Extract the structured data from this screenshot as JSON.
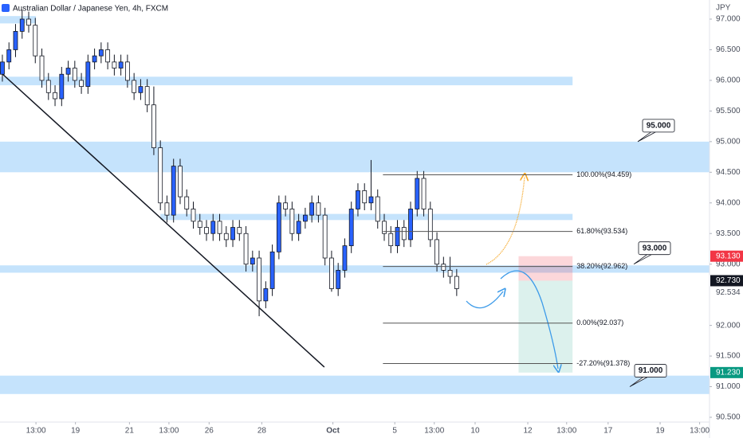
{
  "chart_data": {
    "type": "candlestick",
    "title": "Australian Dollar / Japanese Yen, 4h, FXCM",
    "currency": "JPY",
    "up_color": "#2962ff",
    "down_color": "#ffffff",
    "wick_color": "#131722",
    "open": [
      96.1,
      96.3,
      96.5,
      96.8,
      97.0,
      96.9,
      96.4,
      96.0,
      95.8,
      95.7,
      96.1,
      96.2,
      96.0,
      95.9,
      96.3,
      96.4,
      96.5,
      96.3,
      96.2,
      96.3,
      96.0,
      95.8,
      95.9,
      95.6,
      94.9,
      94.0,
      93.8,
      94.6,
      94.1,
      93.9,
      93.7,
      93.6,
      93.5,
      93.7,
      93.5,
      93.4,
      93.6,
      93.5,
      93.0,
      93.1,
      92.4,
      92.6,
      93.2,
      94.0,
      93.9,
      93.5,
      93.7,
      93.8,
      94.0,
      93.8,
      93.1,
      92.6,
      92.9,
      93.3,
      93.9,
      94.2,
      94.0,
      94.1,
      93.7,
      93.5,
      93.3,
      93.6,
      93.4,
      93.9,
      94.4,
      93.9,
      93.4,
      93.0,
      92.9,
      92.8
    ],
    "high": [
      96.42,
      96.62,
      96.92,
      97.15,
      97.12,
      97.02,
      96.52,
      96.12,
      95.92,
      96.22,
      96.32,
      96.32,
      96.12,
      96.42,
      96.52,
      96.62,
      96.62,
      96.42,
      96.42,
      96.42,
      96.12,
      96.02,
      96.02,
      95.9,
      95.02,
      94.12,
      94.72,
      94.72,
      94.22,
      94.02,
      93.82,
      93.72,
      93.82,
      93.82,
      93.62,
      93.72,
      93.72,
      93.62,
      93.22,
      93.22,
      92.72,
      93.32,
      94.12,
      94.12,
      94.02,
      93.82,
      93.92,
      94.12,
      94.12,
      93.92,
      93.22,
      93.02,
      93.42,
      94.02,
      94.32,
      94.32,
      94.7,
      94.22,
      93.82,
      93.62,
      93.72,
      93.72,
      94.02,
      94.52,
      94.52,
      94.02,
      93.52,
      93.12,
      93.12,
      92.92
    ],
    "low": [
      95.98,
      96.18,
      96.38,
      96.68,
      96.78,
      96.28,
      95.88,
      95.68,
      95.58,
      95.58,
      95.98,
      95.88,
      95.78,
      95.78,
      96.18,
      96.28,
      96.18,
      96.08,
      96.08,
      95.88,
      95.68,
      95.68,
      95.48,
      94.78,
      93.88,
      93.68,
      93.68,
      93.98,
      93.78,
      93.58,
      93.48,
      93.38,
      93.38,
      93.38,
      93.28,
      93.28,
      93.38,
      92.88,
      92.88,
      92.15,
      92.28,
      92.48,
      93.08,
      93.78,
      93.38,
      93.38,
      93.58,
      93.68,
      93.68,
      92.98,
      92.55,
      92.48,
      92.78,
      93.18,
      93.78,
      93.88,
      93.88,
      93.58,
      93.38,
      93.18,
      93.18,
      93.28,
      93.28,
      93.78,
      93.78,
      93.28,
      92.88,
      92.78,
      92.68,
      92.48
    ],
    "close": [
      96.3,
      96.5,
      96.8,
      97.0,
      96.9,
      96.4,
      96.0,
      95.8,
      95.7,
      96.1,
      96.2,
      96.0,
      95.9,
      96.3,
      96.4,
      96.5,
      96.3,
      96.2,
      96.3,
      96.0,
      95.8,
      95.9,
      95.6,
      94.9,
      94.0,
      93.8,
      94.6,
      94.1,
      93.9,
      93.7,
      93.6,
      93.5,
      93.7,
      93.5,
      93.4,
      93.6,
      93.5,
      93.0,
      93.1,
      92.4,
      92.6,
      93.2,
      94.0,
      93.9,
      93.5,
      93.7,
      93.8,
      94.0,
      93.8,
      93.1,
      92.6,
      92.9,
      93.3,
      93.9,
      94.2,
      94.0,
      94.1,
      93.7,
      93.5,
      93.3,
      93.6,
      93.4,
      93.9,
      94.4,
      93.9,
      93.4,
      93.0,
      92.9,
      92.8,
      92.6
    ],
    "xlim": [
      -0.36,
      107.4
    ],
    "ylim": [
      90.422,
      97.312
    ],
    "xticks": [
      {
        "value": 5.1,
        "label": "13:00"
      },
      {
        "value": 11.1,
        "label": "19"
      },
      {
        "value": 19.3,
        "label": "21"
      },
      {
        "value": 25.3,
        "label": "13:00"
      },
      {
        "value": 31.4,
        "label": "26"
      },
      {
        "value": 39.4,
        "label": "28"
      },
      {
        "value": 50.2,
        "label": "Oct"
      },
      {
        "value": 59.6,
        "label": "5"
      },
      {
        "value": 65.6,
        "label": "13:00"
      },
      {
        "value": 71.8,
        "label": "10"
      },
      {
        "value": 79.8,
        "label": "12"
      },
      {
        "value": 85.7,
        "label": "13:00"
      },
      {
        "value": 92.0,
        "label": "17"
      },
      {
        "value": 99.9,
        "label": "19"
      },
      {
        "value": 105.9,
        "label": "13:00"
      }
    ],
    "yticks": [
      {
        "value": 97,
        "label": "97.000"
      },
      {
        "value": 96.5,
        "label": "96.500"
      },
      {
        "value": 96,
        "label": "96.000"
      },
      {
        "value": 95.5,
        "label": "95.500"
      },
      {
        "value": 95,
        "label": "95.000"
      },
      {
        "value": 94.5,
        "label": "94.500"
      },
      {
        "value": 94,
        "label": "94.000"
      },
      {
        "value": 93.5,
        "label": "93.500"
      },
      {
        "value": 93,
        "label": "93.000"
      },
      {
        "value": 92,
        "label": "92.000"
      },
      {
        "value": 91.5,
        "label": "91.500"
      },
      {
        "value": 91,
        "label": "91.000"
      },
      {
        "value": 90.5,
        "label": "90.500"
      }
    ],
    "axis_marker": {
      "value": 92.534,
      "label": "92.534"
    },
    "zone_color": "#bbdefb",
    "zones": [
      {
        "top": 97.05,
        "bottom": 96.93,
        "x_from": -0.36,
        "x_to": 5.1
      },
      {
        "top": 96.06,
        "bottom": 95.92,
        "x_from": -0.36,
        "x_to": 86.6
      },
      {
        "top": 95.0,
        "bottom": 94.5,
        "x_from": -0.36,
        "x_to": 107.4
      },
      {
        "top": 93.82,
        "bottom": 93.72,
        "x_from": 24.0,
        "x_to": 86.6
      },
      {
        "top": 92.98,
        "bottom": 92.86,
        "x_from": -0.36,
        "x_to": 107.4
      },
      {
        "top": 91.18,
        "bottom": 90.88,
        "x_from": -0.36,
        "x_to": 107.4
      }
    ],
    "trendline": {
      "x": [
        -0.36,
        48.9
      ],
      "y": [
        96.14,
        91.32
      ]
    },
    "fib_x": [
      57.8,
      86.6
    ],
    "fib_levels": [
      {
        "value": 94.459,
        "label": "100.00%(94.459)"
      },
      {
        "value": 93.534,
        "label": "61.80%(93.534)"
      },
      {
        "value": 92.962,
        "label": "38.20%(92.962)"
      },
      {
        "value": 92.037,
        "label": "0.00%(92.037)"
      },
      {
        "value": 91.378,
        "label": "-27.20%(91.378)"
      }
    ],
    "position": {
      "stop": 93.13,
      "entry": 92.73,
      "target": 91.23,
      "x_from": 78.4,
      "x_to": 86.6
    },
    "callouts": [
      {
        "value": 95,
        "label": "95.000"
      },
      {
        "value": 93,
        "label": "93.000"
      },
      {
        "value": 91,
        "label": "91.000"
      }
    ],
    "price_tags": [
      {
        "value": 93.13,
        "label": "93.130",
        "color": "#f23645"
      },
      {
        "value": 92.73,
        "label": "92.730",
        "color": "#131722"
      },
      {
        "value": 91.23,
        "label": "91.230",
        "color": "#089981"
      }
    ]
  }
}
